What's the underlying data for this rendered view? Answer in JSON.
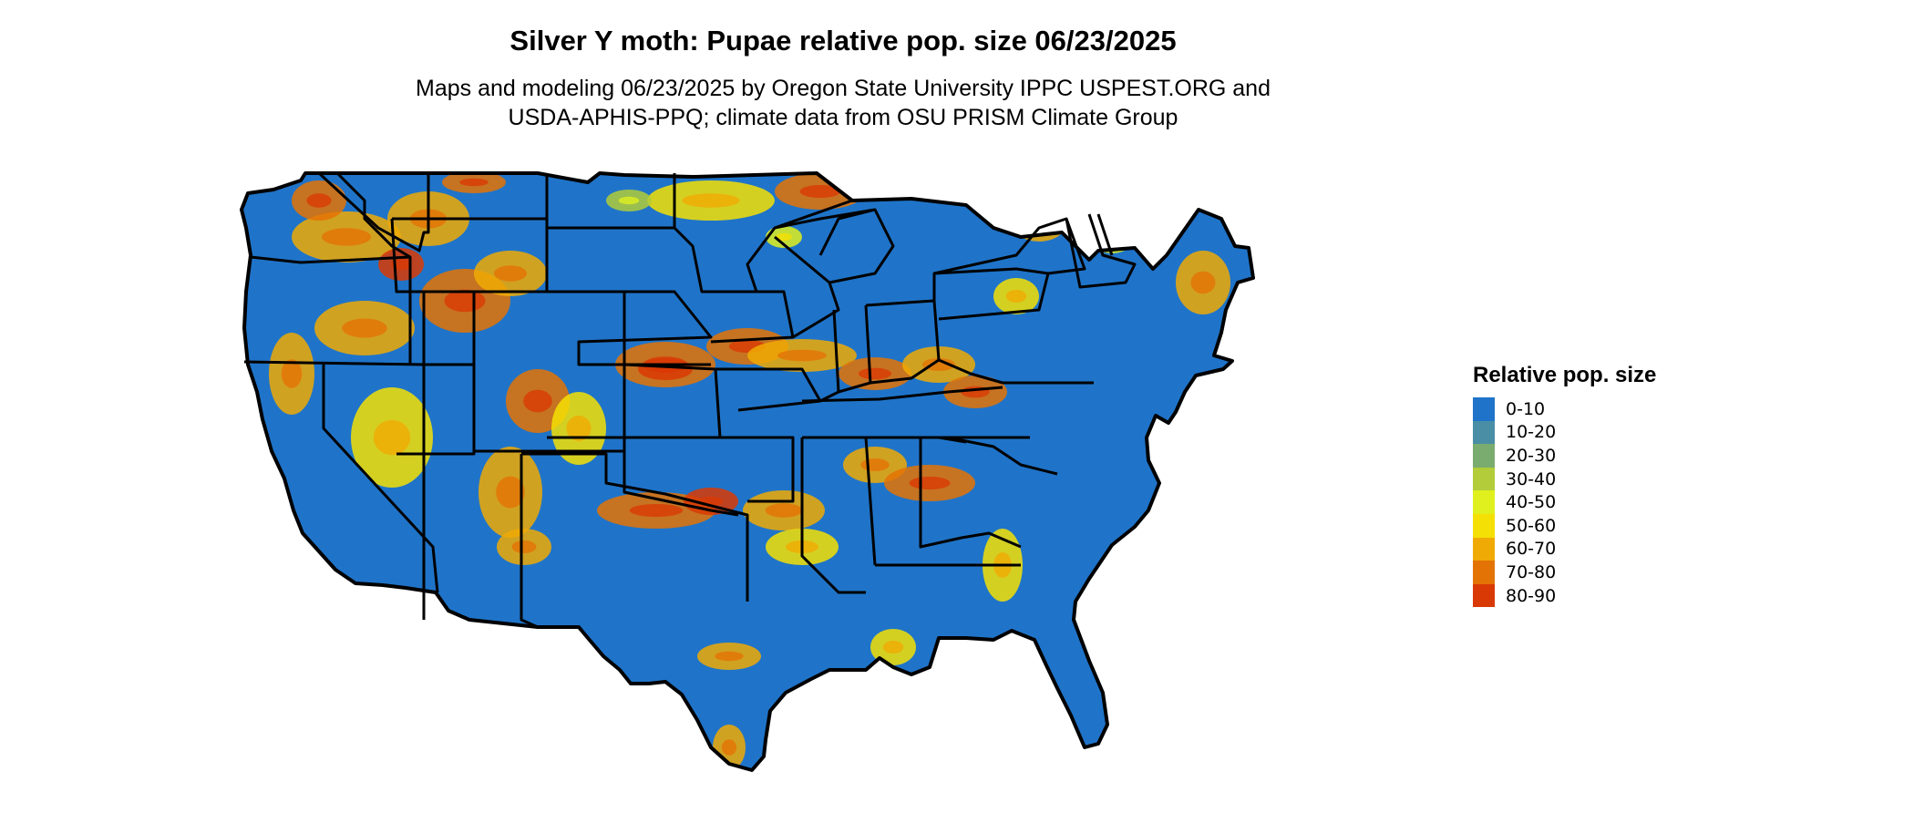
{
  "header": {
    "title": "Silver Y moth: Pupae relative pop. size 06/23/2025",
    "subtitle_line1": "Maps and modeling 06/23/2025 by Oregon State University IPPC USPEST.ORG and",
    "subtitle_line2": "USDA-APHIS-PPQ; climate data from OSU PRISM Climate Group"
  },
  "legend": {
    "title": "Relative pop. size",
    "items": [
      {
        "label": "0-10",
        "color": "#1f74c9"
      },
      {
        "label": "10-20",
        "color": "#4a8ea6"
      },
      {
        "label": "20-30",
        "color": "#7aab6f"
      },
      {
        "label": "30-40",
        "color": "#b2cc3a"
      },
      {
        "label": "40-50",
        "color": "#dff01e"
      },
      {
        "label": "50-60",
        "color": "#f4e005"
      },
      {
        "label": "60-70",
        "color": "#f0aa05"
      },
      {
        "label": "70-80",
        "color": "#e47305"
      },
      {
        "label": "80-90",
        "color": "#d93a05"
      }
    ]
  },
  "map": {
    "region": "contiguous-united-states",
    "border_color": "#000000",
    "background_class": "0-10"
  }
}
